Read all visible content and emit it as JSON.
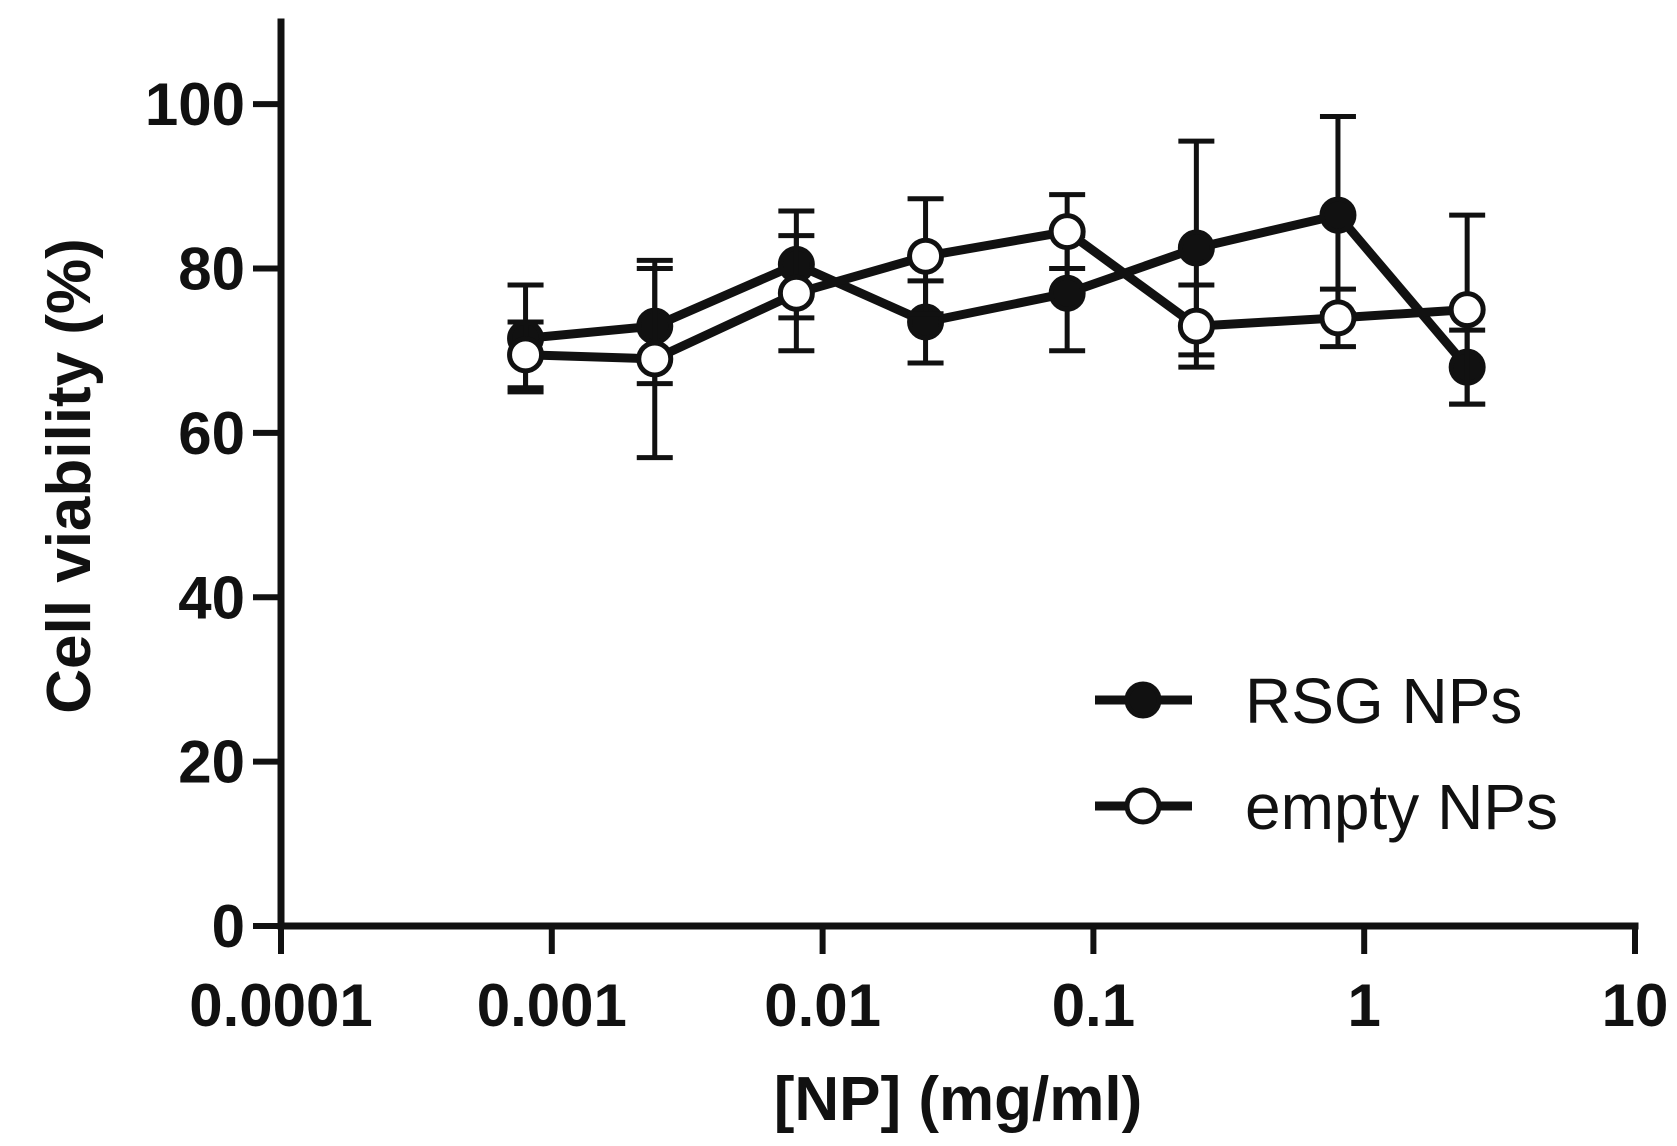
{
  "chart_data": {
    "type": "line",
    "title": "",
    "xlabel": "[NP] (mg/ml)",
    "ylabel": "Cell viability (%)",
    "xscale": "log",
    "xlim": [
      0.0001,
      10
    ],
    "ylim": [
      0,
      110
    ],
    "x_ticks": [
      0.0001,
      0.001,
      0.01,
      0.1,
      1,
      10
    ],
    "x_tick_labels": [
      "0.0001",
      "0.001",
      "0.01",
      "0.1",
      "1",
      "10"
    ],
    "y_ticks": [
      0,
      20,
      40,
      60,
      80,
      100
    ],
    "y_tick_labels": [
      "0",
      "20",
      "40",
      "60",
      "80",
      "100"
    ],
    "grid": false,
    "legend_position": "bottom-right",
    "x": [
      0.0008,
      0.0024,
      0.008,
      0.024,
      0.08,
      0.24,
      0.8,
      2.4
    ],
    "series": [
      {
        "name": "RSG NPs",
        "marker": "filled",
        "values": [
          71.5,
          73,
          80.5,
          73.5,
          77,
          82.5,
          86.5,
          68
        ],
        "error": [
          6.5,
          7,
          6.5,
          5,
          7,
          13,
          12,
          4.5
        ]
      },
      {
        "name": "empty NPs",
        "marker": "open",
        "values": [
          69.5,
          69,
          77,
          81.5,
          84.5,
          73,
          74,
          75
        ],
        "error": [
          4,
          12,
          7,
          7,
          4.5,
          5,
          3.5,
          11.5
        ]
      }
    ]
  }
}
